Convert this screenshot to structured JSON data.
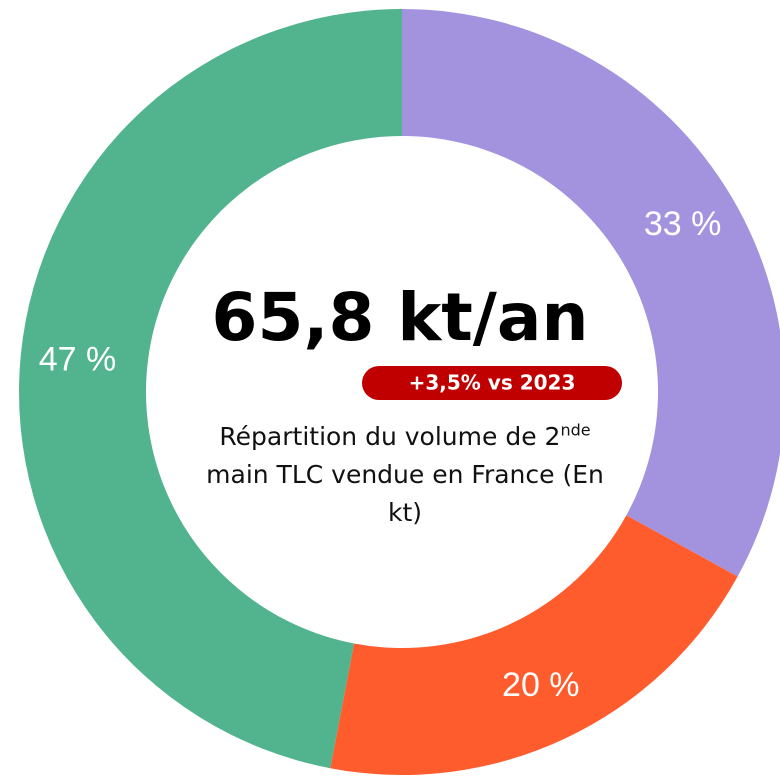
{
  "chart_data": {
    "type": "donut",
    "categories": [
      null,
      null,
      null
    ],
    "values": [
      33,
      20,
      47
    ],
    "value_labels": [
      "33 %",
      "20 %",
      "47 %"
    ],
    "colors": [
      "#a393df",
      "#ff5c2e",
      "#52b38f"
    ],
    "center_title": "65,8 kt/an",
    "badge": "+3,5% vs 2023",
    "badge_color": "#c00000",
    "description_parts": [
      "Répartition du volume de 2",
      "nde",
      " main TLC vendue en France (En kt)"
    ]
  }
}
